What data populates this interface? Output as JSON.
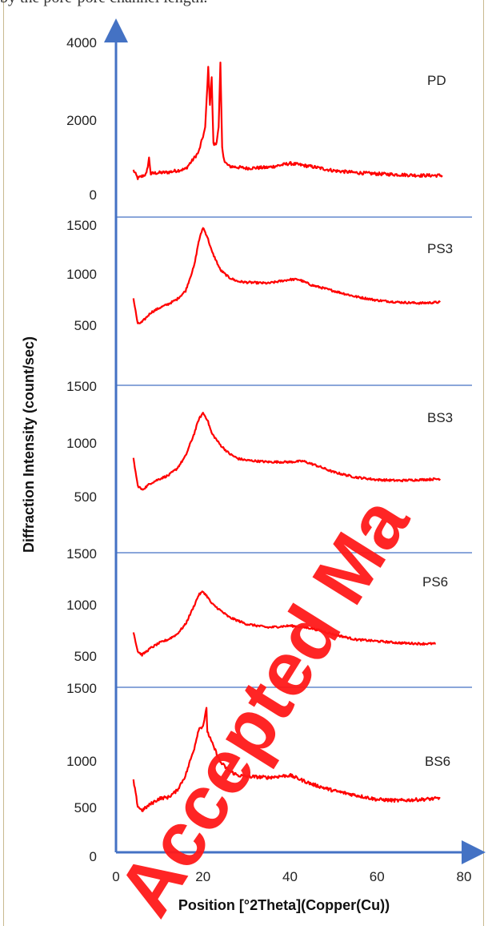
{
  "header_fragment": "by the pore-pore channel length.",
  "watermark_text": "Accepted Ma",
  "colors": {
    "axis": "#4472c4",
    "series": "#ff0000",
    "watermark": "#ff1a1a",
    "frame": "#c9b98f"
  },
  "chart_data": {
    "type": "line",
    "layout": "stacked-panels",
    "xlabel": "Position [°2Theta](Copper(Cu))",
    "ylabel": "Diffraction Intensity (count/sec)",
    "xlim": [
      0,
      80
    ],
    "x_ticks": [
      "0",
      "20",
      "40",
      "60",
      "80"
    ],
    "grid": false,
    "panels": [
      {
        "name": "PD",
        "ylim": [
          0,
          4000
        ],
        "y_ticks": [
          "4000",
          "2000",
          "0"
        ],
        "x": [
          4,
          5,
          6,
          7,
          7.6,
          8,
          9,
          12,
          16,
          19,
          20.5,
          21.2,
          21.6,
          22,
          22.4,
          23,
          23.6,
          24,
          24.4,
          25,
          26,
          30,
          35,
          40,
          45,
          50,
          55,
          60,
          65,
          70,
          75
        ],
        "values": [
          650,
          450,
          500,
          560,
          950,
          560,
          580,
          600,
          680,
          1100,
          1700,
          3200,
          2300,
          2950,
          1300,
          1300,
          1700,
          3300,
          1200,
          850,
          750,
          700,
          720,
          820,
          740,
          640,
          590,
          560,
          540,
          520,
          520
        ]
      },
      {
        "name": "PS3",
        "ylim": [
          400,
          1500
        ],
        "y_ticks": [
          "1500",
          "1000",
          "500"
        ],
        "x": [
          4,
          5,
          6,
          8,
          10,
          12,
          14,
          16,
          18,
          19,
          20,
          21,
          22,
          24,
          26,
          28,
          30,
          35,
          40,
          42,
          45,
          50,
          55,
          60,
          65,
          70,
          74.5
        ],
        "values": [
          700,
          430,
          450,
          550,
          600,
          640,
          690,
          780,
          1050,
          1300,
          1450,
          1350,
          1200,
          1000,
          920,
          880,
          870,
          860,
          900,
          900,
          840,
          780,
          720,
          680,
          660,
          650,
          660
        ]
      },
      {
        "name": "BS3",
        "ylim": [
          250,
          1500
        ],
        "y_ticks": [
          "1500",
          "1000",
          "500"
        ],
        "x": [
          4,
          5,
          6,
          8,
          10,
          12,
          14,
          16,
          18,
          19,
          20,
          21,
          22,
          24,
          26,
          28,
          30,
          35,
          40,
          43,
          46,
          50,
          55,
          60,
          65,
          70,
          74.5
        ],
        "values": [
          700,
          380,
          330,
          410,
          460,
          500,
          580,
          730,
          1000,
          1160,
          1240,
          1160,
          1000,
          860,
          760,
          700,
          680,
          660,
          660,
          670,
          620,
          540,
          480,
          450,
          440,
          450,
          460
        ]
      },
      {
        "name": "PS6",
        "ylim": [
          300,
          1500
        ],
        "y_ticks": [
          "1500",
          "1000",
          "500"
        ],
        "x": [
          4,
          5,
          6,
          8,
          10,
          12,
          14,
          16,
          18,
          19,
          20,
          21,
          22,
          24,
          26,
          30,
          35,
          40,
          42,
          45,
          50,
          55,
          60,
          65,
          70,
          73.5
        ],
        "values": [
          650,
          420,
          380,
          460,
          520,
          560,
          620,
          740,
          960,
          1080,
          1120,
          1060,
          980,
          900,
          820,
          740,
          700,
          720,
          710,
          690,
          620,
          560,
          540,
          520,
          510,
          510
        ]
      },
      {
        "name": "BS6",
        "ylim": [
          0,
          1500
        ],
        "y_ticks": [
          "1500",
          "1000",
          "500",
          "0"
        ],
        "x": [
          4,
          5,
          6,
          8,
          10,
          12,
          14,
          16,
          18,
          19,
          20,
          20.8,
          21,
          22,
          24,
          26,
          28,
          30,
          35,
          40,
          45,
          50,
          55,
          60,
          65,
          70,
          74.5
        ],
        "values": [
          650,
          420,
          380,
          440,
          490,
          500,
          560,
          700,
          950,
          1120,
          1150,
          1300,
          1100,
          1000,
          820,
          740,
          700,
          690,
          680,
          700,
          620,
          560,
          520,
          480,
          470,
          480,
          490
        ]
      }
    ]
  }
}
